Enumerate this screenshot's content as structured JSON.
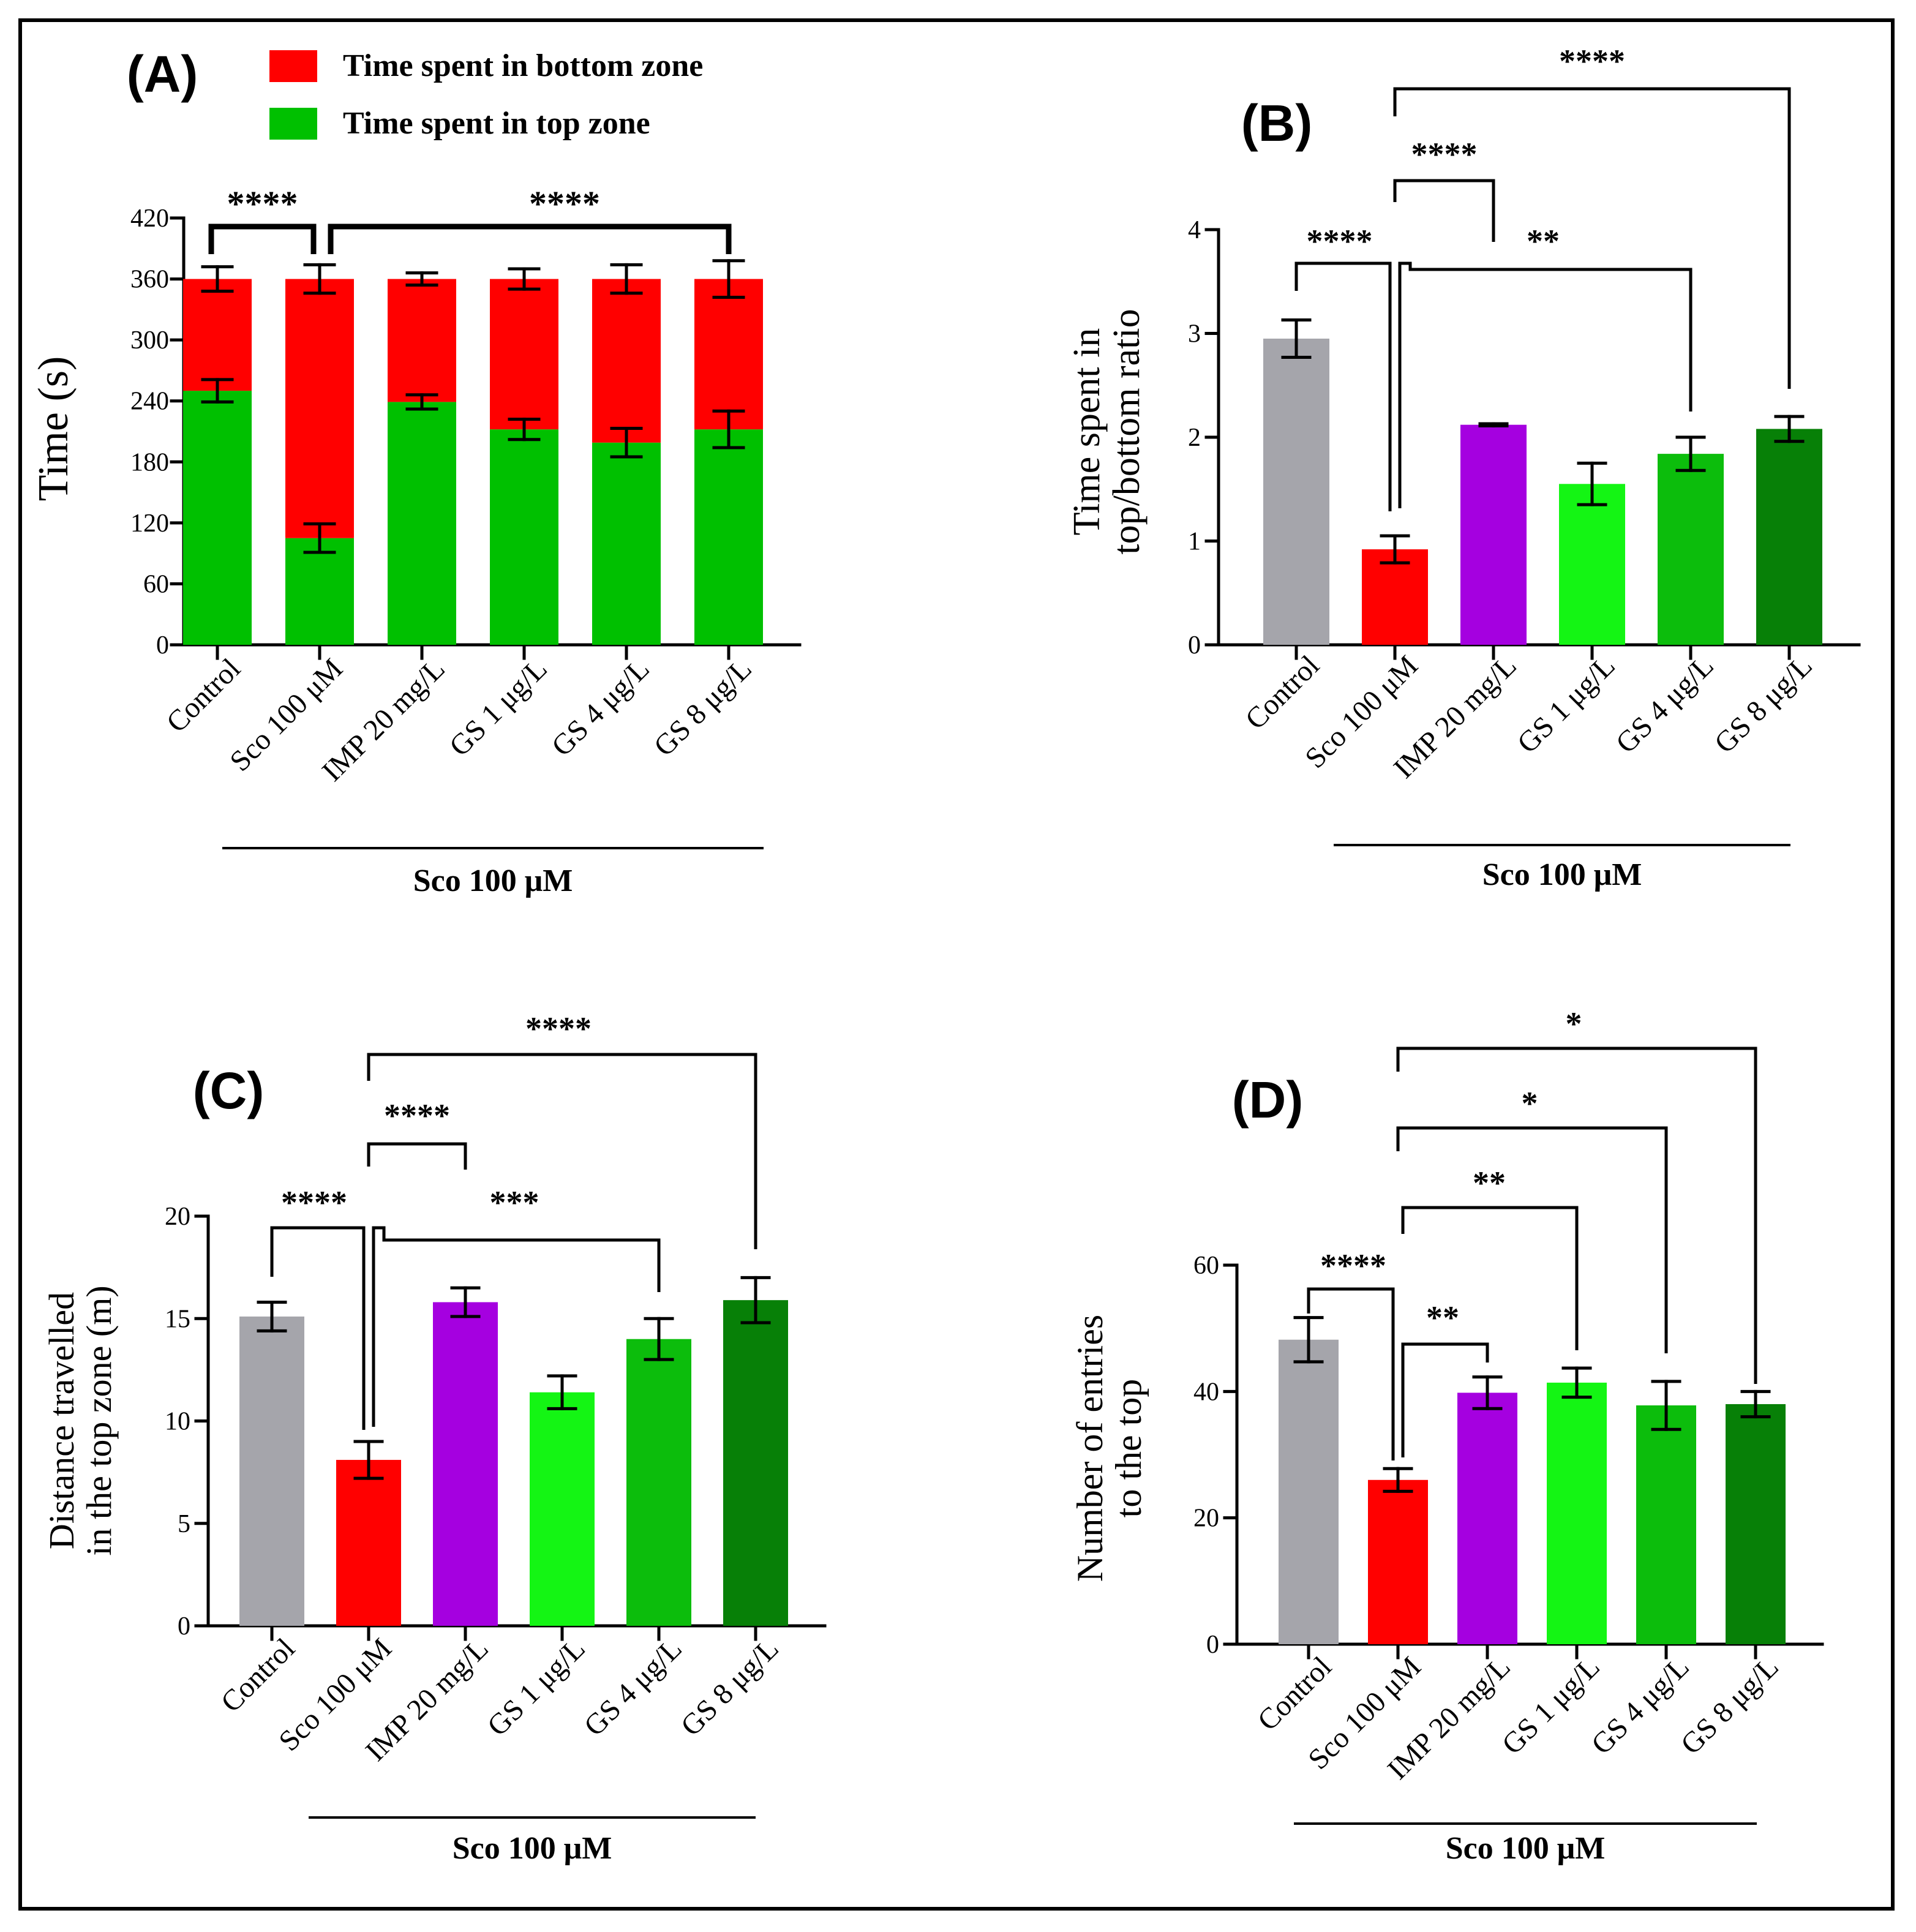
{
  "colors": {
    "control": "#a5a5ab",
    "sco": "#ff0000",
    "imp": "#a500e0",
    "gs1": "#14f514",
    "gs4": "#0cbd0c",
    "gs8": "#078007",
    "bottom_zone": "#ff0000",
    "top_zone": "#00c000",
    "axis": "#000000"
  },
  "chart_data": [
    {
      "id": "A",
      "type": "bar",
      "stacked": true,
      "panel_label": "(A)",
      "title": "",
      "ylabel": "Time  (s)",
      "xlabel": "",
      "categories": [
        "Control",
        "Sco 100 μM",
        "IMP 20 mg/L",
        "GS 1 μg/L",
        "GS 4 μg/L",
        "GS 8 μg/L"
      ],
      "ylim": [
        0,
        420
      ],
      "yticks": [
        0,
        60,
        120,
        180,
        240,
        300,
        360,
        420
      ],
      "series": [
        {
          "name": "Time spent in top zone",
          "color": "#00c000",
          "values": [
            250,
            105,
            239,
            212,
            199,
            212
          ],
          "errors": [
            11,
            14,
            7,
            10,
            14,
            18
          ]
        },
        {
          "name": "Time spent in bottom zone",
          "color": "#ff0000",
          "values": [
            110,
            255,
            121,
            148,
            161,
            148
          ],
          "errors": [
            12,
            14,
            6,
            10,
            14,
            18
          ]
        }
      ],
      "legend": [
        "Time spent in bottom zone",
        "Time spent in top zone"
      ],
      "group_label": "Sco 100 μM",
      "significance": [
        "****",
        "****"
      ]
    },
    {
      "id": "B",
      "type": "bar",
      "panel_label": "(B)",
      "title": "",
      "ylabel": [
        "Time spent in",
        "top/bottom ratio"
      ],
      "xlabel": "",
      "categories": [
        "Control",
        "Sco 100 μM",
        "IMP 20 mg/L",
        "GS 1 μg/L",
        "GS 4 μg/L",
        "GS 8 μg/L"
      ],
      "ylim": [
        0,
        4
      ],
      "yticks": [
        0,
        1,
        2,
        3,
        4
      ],
      "values": [
        2.95,
        0.92,
        2.12,
        1.55,
        1.84,
        2.08
      ],
      "errors": [
        0.18,
        0.13,
        0.01,
        0.2,
        0.16,
        0.12
      ],
      "group_label": "Sco 100 μM",
      "significance": [
        "****",
        "****",
        "**",
        "****"
      ]
    },
    {
      "id": "C",
      "type": "bar",
      "panel_label": "(C)",
      "title": "",
      "ylabel": [
        "Distance travelled",
        "in the top zone (m)"
      ],
      "xlabel": "",
      "categories": [
        "Control",
        "Sco 100 μM",
        "IMP 20 mg/L",
        "GS 1 μg/L",
        "GS 4 μg/L",
        "GS 8 μg/L"
      ],
      "ylim": [
        0,
        20
      ],
      "yticks": [
        0,
        5,
        10,
        15,
        20
      ],
      "values": [
        15.1,
        8.1,
        15.8,
        11.4,
        14.0,
        15.9
      ],
      "errors": [
        0.7,
        0.9,
        0.7,
        0.8,
        1.0,
        1.1
      ],
      "group_label": "Sco 100 μM",
      "significance": [
        "****",
        "****",
        "***",
        "****"
      ]
    },
    {
      "id": "D",
      "type": "bar",
      "panel_label": "(D)",
      "title": "",
      "ylabel": [
        "Number of entries",
        "to the top"
      ],
      "xlabel": "",
      "categories": [
        "Control",
        "Sco 100 μM",
        "IMP 20 mg/L",
        "GS 1 μg/L",
        "GS 4 μg/L",
        "GS 8 μg/L"
      ],
      "ylim": [
        0,
        60
      ],
      "yticks": [
        0,
        20,
        40,
        60
      ],
      "values": [
        48.2,
        26.0,
        39.8,
        41.4,
        37.8,
        38.0
      ],
      "errors": [
        3.5,
        1.8,
        2.5,
        2.3,
        3.8,
        2.0
      ],
      "group_label": "Sco 100 μM",
      "significance": [
        "****",
        "**",
        "**",
        "*",
        "*"
      ]
    }
  ]
}
